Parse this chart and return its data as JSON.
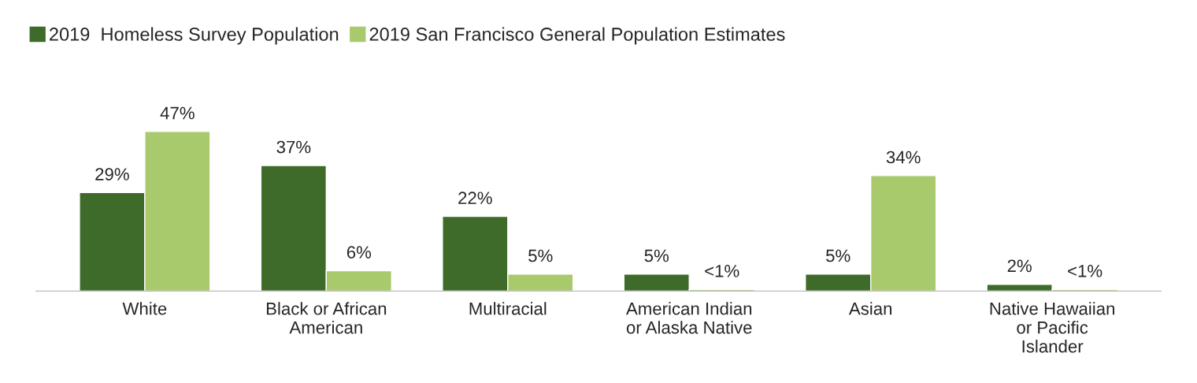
{
  "chart_data": {
    "type": "bar",
    "categories": [
      "White",
      "Black or African\nAmerican",
      "Multiracial",
      "American Indian\nor Alaska Native",
      "Asian",
      "Native Hawaiian\nor Pacific\nIslander"
    ],
    "series": [
      {
        "name": "2019  Homeless Survey Population",
        "color": "#3f6b2a",
        "values": [
          29,
          37,
          22,
          5,
          5,
          2
        ],
        "value_labels": [
          "29%",
          "37%",
          "22%",
          "5%",
          "5%",
          "2%"
        ]
      },
      {
        "name": "2019 San Francisco General Population Estimates",
        "color": "#a8c96c",
        "values": [
          47,
          6,
          5,
          0.5,
          34,
          0.5
        ],
        "value_labels": [
          "47%",
          "6%",
          "5%",
          "<1%",
          "34%",
          "<1%"
        ]
      }
    ],
    "grid": false,
    "legend": "top left"
  }
}
